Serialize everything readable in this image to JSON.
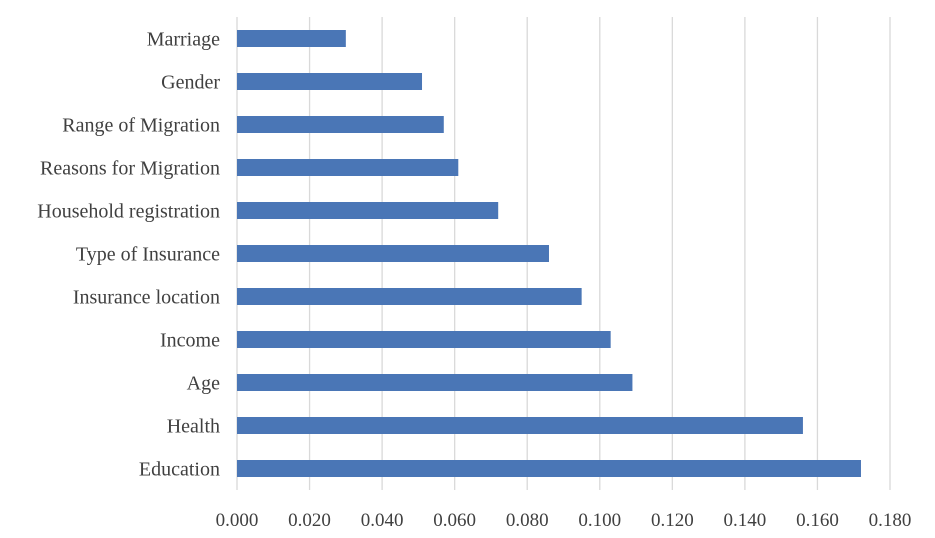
{
  "chart_data": {
    "type": "bar",
    "orientation": "horizontal",
    "categories": [
      "Marriage",
      "Gender",
      "Range of Migration",
      "Reasons for Migration",
      "Household registration",
      "Type of Insurance",
      "Insurance location",
      "Income",
      "Age",
      "Health",
      "Education"
    ],
    "values": [
      0.03,
      0.051,
      0.057,
      0.061,
      0.072,
      0.086,
      0.095,
      0.103,
      0.109,
      0.156,
      0.172
    ],
    "xlim": [
      0,
      0.18
    ],
    "xticks": [
      "0.000",
      "0.020",
      "0.040",
      "0.060",
      "0.080",
      "0.100",
      "0.120",
      "0.140",
      "0.160",
      "0.180"
    ],
    "grid": "vertical",
    "legend": "none",
    "bar_color": "#4a76b6",
    "grid_color": "#d9d9d9"
  }
}
